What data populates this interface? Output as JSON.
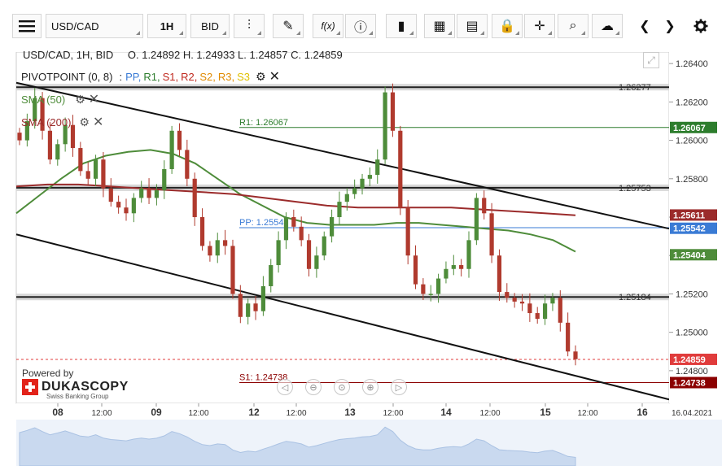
{
  "toolbar": {
    "menu_icon": "hamburger-icon",
    "symbol": "USD/CAD",
    "timeframe": "1H",
    "price_side": "BID",
    "buttons": [
      {
        "name": "candle-type-icon",
        "glyph": "⫶"
      },
      {
        "name": "draw-pen-icon",
        "glyph": "✎"
      },
      {
        "name": "function-icon",
        "glyph": "f(x)"
      },
      {
        "name": "info-icon",
        "glyph": "ⓘ"
      },
      {
        "name": "bar-chart-icon",
        "glyph": "▮"
      },
      {
        "name": "calendar-icon",
        "glyph": "▦"
      },
      {
        "name": "news-icon",
        "glyph": "▤"
      },
      {
        "name": "lock-icon",
        "glyph": "🔒"
      },
      {
        "name": "crosshair-icon",
        "glyph": "✛"
      },
      {
        "name": "zoom-icon",
        "glyph": "⌕"
      },
      {
        "name": "cloud-upload-icon",
        "glyph": "☁"
      }
    ],
    "prev_glyph": "❮",
    "next_glyph": "❯",
    "settings_glyph": "✱"
  },
  "header": {
    "title": "USD/CAD, 1H, BID",
    "ohlc": "O. 1.24892 H. 1.24933 L. 1.24857 C. 1.24859"
  },
  "legend": {
    "pivot_label": "PIVOTPOINT (0, 8)",
    "pivot_levels": [
      {
        "text": "PP,",
        "color": "#3a7bd5"
      },
      {
        "text": "R1,",
        "color": "#2d7d2d"
      },
      {
        "text": "S1,",
        "color": "#c0281e"
      },
      {
        "text": "R2,",
        "color": "#c0281e"
      },
      {
        "text": "S2,",
        "color": "#e08a00"
      },
      {
        "text": "R3,",
        "color": "#e08a00"
      },
      {
        "text": "S3",
        "color": "#e0c000"
      }
    ],
    "sma50_label": "SMA (50)",
    "sma200_label": "SMA (200)"
  },
  "branding": {
    "powered_by": "Powered by",
    "name": "DUKASCOPY",
    "sub": "Swiss Banking Group"
  },
  "colors": {
    "sma50": "#4e8c3a",
    "sma200": "#9b2b2b",
    "up_candle": "#4e8c3a",
    "down_candle": "#b03a2e",
    "pp_line": "#3a7bd5",
    "r1_line": "#2d7d2d",
    "s1_line": "#8b0000"
  },
  "chart_data": {
    "type": "candlestick",
    "symbol": "USD/CAD",
    "timeframe": "1H",
    "ylim": [
      1.2463,
      1.2646
    ],
    "y_ticks": [
      "1.26400",
      "1.26200",
      "1.26000",
      "1.25800",
      "1.25600",
      "1.25400",
      "1.25200",
      "1.25000",
      "1.24800"
    ],
    "x_tick_labels": [
      "08",
      "12:00",
      "09",
      "12:00",
      "12",
      "12:00",
      "13",
      "12:00",
      "14",
      "12:00",
      "15",
      "12:00",
      "16",
      "16.04.2021"
    ],
    "horizontal_lines": [
      {
        "label": "1.26277",
        "value": 1.26277,
        "style": "channel"
      },
      {
        "label": "R1: 1.26067",
        "value": 1.26067,
        "style": "r1"
      },
      {
        "label": "1.25753",
        "value": 1.25753,
        "style": "channel"
      },
      {
        "label": "PP: 1.25545",
        "value": 1.25545,
        "style": "pp"
      },
      {
        "label": "1.25184",
        "value": 1.25184,
        "style": "channel"
      },
      {
        "label": "S1: 1.24738",
        "value": 1.24738,
        "style": "s1"
      }
    ],
    "price_labels": [
      {
        "text": "1.26067",
        "value": 1.26067,
        "color": "#2d7d2d"
      },
      {
        "text": "1.25611",
        "value": 1.25611,
        "color": "#9b2b2b"
      },
      {
        "text": "1.25542",
        "value": 1.25542,
        "color": "#3a7bd5"
      },
      {
        "text": "1.25404",
        "value": 1.25404,
        "color": "#4e8c3a"
      },
      {
        "text": "1.24859",
        "value": 1.24859,
        "color": "#e03c3c"
      },
      {
        "text": "1.24738",
        "value": 1.24738,
        "color": "#8b0000"
      }
    ],
    "last_price": 1.24859,
    "close_path": [
      1.26,
      1.261,
      1.2622,
      1.2605,
      1.259,
      1.2598,
      1.2608,
      1.2596,
      1.2584,
      1.258,
      1.259,
      1.2575,
      1.2568,
      1.2565,
      1.2562,
      1.257,
      1.2575,
      1.257,
      1.2574,
      1.2585,
      1.2605,
      1.2595,
      1.258,
      1.256,
      1.2545,
      1.254,
      1.2548,
      1.2545,
      1.252,
      1.2508,
      1.2515,
      1.2511,
      1.2524,
      1.2535,
      1.2548,
      1.256,
      1.2555,
      1.2548,
      1.2533,
      1.254,
      1.255,
      1.256,
      1.2568,
      1.2572,
      1.2575,
      1.258,
      1.2582,
      1.259,
      1.2625,
      1.2605,
      1.2565,
      1.254,
      1.2525,
      1.252,
      1.252,
      1.2528,
      1.2533,
      1.2535,
      1.2533,
      1.2548,
      1.257,
      1.2562,
      1.254,
      1.2521,
      1.2518,
      1.2516,
      1.2515,
      1.251,
      1.2507,
      1.2515,
      1.2518,
      1.2505,
      1.249,
      1.2486
    ],
    "sma50": [
      1.2562,
      1.2571,
      1.258,
      1.2588,
      1.2592,
      1.2594,
      1.2595,
      1.2593,
      1.2588,
      1.258,
      1.2572,
      1.2566,
      1.256,
      1.2557,
      1.2556,
      1.2556,
      1.2556,
      1.2557,
      1.2557,
      1.2556,
      1.2555,
      1.2554,
      1.2553,
      1.2551,
      1.2548,
      1.2542
    ],
    "sma200": [
      1.2576,
      1.2577,
      1.2577,
      1.2576,
      1.2575,
      1.2574,
      1.2573,
      1.2572,
      1.257,
      1.2568,
      1.2566,
      1.2565,
      1.2565,
      1.2565,
      1.2565,
      1.2564,
      1.2563,
      1.2562,
      1.2561
    ]
  }
}
